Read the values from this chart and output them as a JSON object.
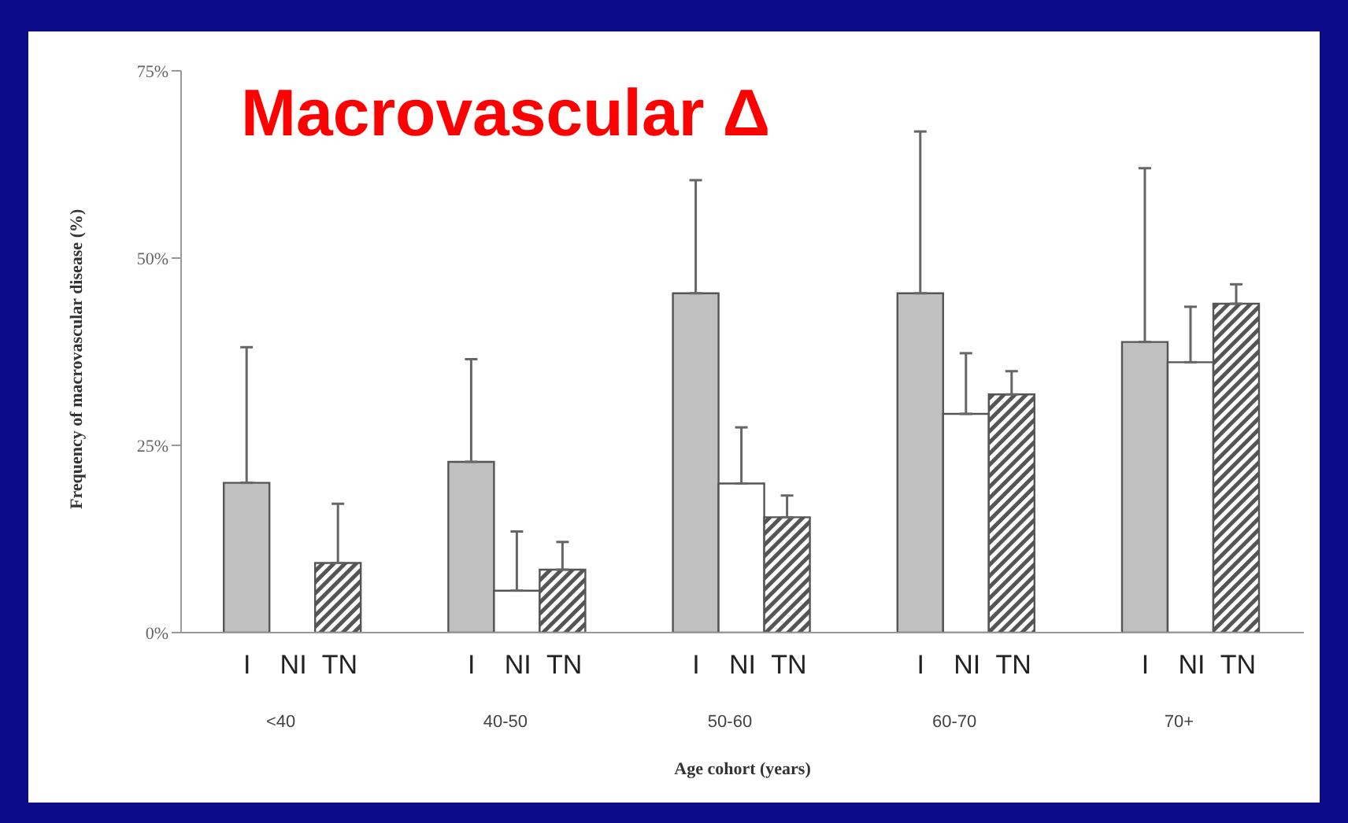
{
  "chart_data": {
    "type": "bar",
    "title": "Macrovascular Δ",
    "xlabel": "Age cohort (years)",
    "ylabel": "Frequency of macrovascular disease (%)",
    "categories": [
      "<40",
      "40-50",
      "50-60",
      "60-70",
      "70+"
    ],
    "series": [
      {
        "name": "I",
        "color": "#c0c0c0",
        "values": [
          20,
          22.8,
          45.3,
          45.3,
          38.8
        ],
        "errors": [
          [
            20,
            38.1
          ],
          [
            22.8,
            36.5
          ],
          [
            45.3,
            60.4
          ],
          [
            45.3,
            66.9
          ],
          [
            38.8,
            62
          ]
        ]
      },
      {
        "name": "NI",
        "color": "#ffffff",
        "values": [
          0,
          5.6,
          19.9,
          29.2,
          36.1
        ],
        "errors": [
          null,
          [
            5.6,
            13.5
          ],
          [
            19.9,
            27.4
          ],
          [
            29.2,
            37.3
          ],
          [
            36.1,
            43.5
          ]
        ]
      },
      {
        "name": "TN",
        "color": "#555555",
        "values": [
          9.3,
          8.4,
          15.4,
          31.8,
          43.9
        ],
        "errors": [
          [
            9.3,
            17.2
          ],
          [
            8.4,
            12.1
          ],
          [
            15.4,
            18.3
          ],
          [
            31.8,
            34.9
          ],
          [
            43.9,
            46.5
          ]
        ]
      }
    ],
    "ylim": [
      0,
      75
    ],
    "yticks": [
      {
        "value": 0,
        "label": "0%"
      },
      {
        "value": 25,
        "label": "25%"
      },
      {
        "value": 50,
        "label": "50%"
      },
      {
        "value": 75,
        "label": "75%"
      }
    ],
    "grid": false,
    "legend": false
  }
}
